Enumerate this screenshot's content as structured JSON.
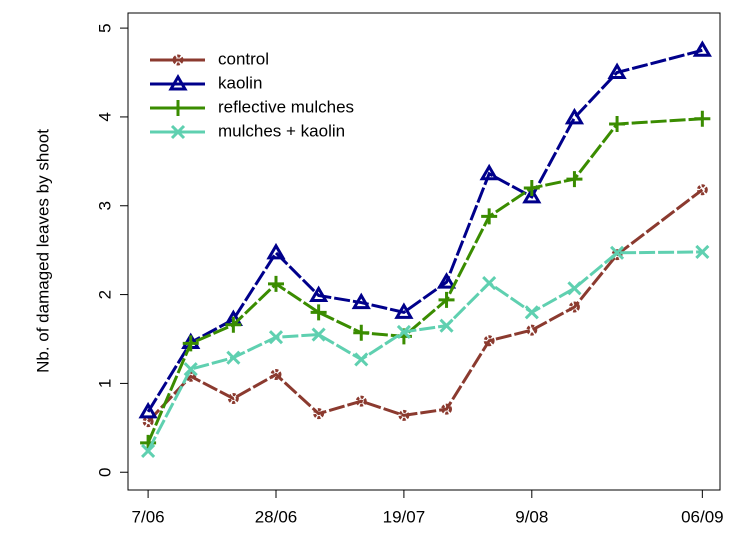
{
  "chart_data": {
    "type": "line",
    "ylabel": "Nb. of damaged leaves by shoot",
    "x": [
      0,
      7,
      14,
      21,
      28,
      35,
      42,
      49,
      56,
      63,
      70,
      77,
      91
    ],
    "xlim": [
      -3.3,
      93.9
    ],
    "xticks": [
      {
        "value": 0,
        "label": "7/06"
      },
      {
        "value": 21,
        "label": "28/06"
      },
      {
        "value": 42,
        "label": "19/07"
      },
      {
        "value": 63,
        "label": "9/08"
      },
      {
        "value": 91,
        "label": "06/09"
      }
    ],
    "ylim": [
      -0.2,
      5.17
    ],
    "yticks": [
      0,
      1,
      2,
      3,
      4,
      5
    ],
    "legend": "top-left",
    "series": [
      {
        "name": "control",
        "color": "#8b3a2f",
        "marker": "circle",
        "values": [
          0.57,
          1.08,
          0.83,
          1.1,
          0.66,
          0.8,
          0.64,
          0.71,
          1.48,
          1.6,
          1.86,
          2.45,
          3.18
        ]
      },
      {
        "name": "kaolin",
        "color": "#00008b",
        "marker": "triangle",
        "values": [
          0.68,
          1.46,
          1.72,
          2.47,
          1.99,
          1.91,
          1.8,
          2.14,
          3.36,
          3.1,
          3.99,
          4.5,
          4.75
        ]
      },
      {
        "name": "reflective mulches",
        "color": "#3a8c00",
        "marker": "plus",
        "values": [
          0.33,
          1.45,
          1.66,
          2.12,
          1.8,
          1.57,
          1.53,
          1.94,
          2.88,
          3.2,
          3.3,
          3.92,
          3.98
        ]
      },
      {
        "name": "mulches + kaolin",
        "color": "#5fd0b0",
        "marker": "cross",
        "values": [
          0.24,
          1.16,
          1.29,
          1.52,
          1.55,
          1.27,
          1.58,
          1.65,
          2.13,
          1.8,
          2.07,
          2.47,
          2.48
        ]
      }
    ]
  }
}
